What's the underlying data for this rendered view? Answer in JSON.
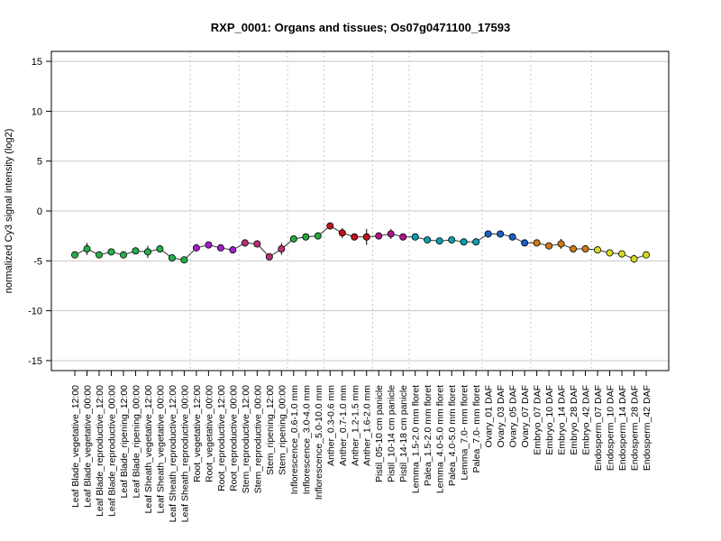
{
  "chart_data": {
    "type": "line",
    "title": "RXP_0001: Organs and tissues; Os07g0471100_17593",
    "ylabel": "normalized Cy3 signal intensity (log2)",
    "xlabel": "",
    "ylim": [
      -16,
      16
    ],
    "yticks": [
      -15,
      -10,
      -5,
      0,
      5,
      10,
      15
    ],
    "grid": {
      "horizontal": true,
      "vertical": "dotted at group boundaries"
    },
    "categories": [
      "Leaf Blade_vegetative_12:00",
      "Leaf Blade_vegetative_00:00",
      "Leaf Blade_reproductive_12:00",
      "Leaf Blade_reproductive_00:00",
      "Leaf Blade_ripening_12:00",
      "Leaf Blade_ripening_00:00",
      "Leaf Sheath_vegetative_12:00",
      "Leaf Sheath_vegetative_00:00",
      "Leaf Sheath_reproductive_12:00",
      "Leaf Sheath_reproductive_00:00",
      "Root_vegetative_12:00",
      "Root_vegetative_00:00",
      "Root_reproductive_12:00",
      "Root_reproductive_00:00",
      "Stem_reproductive_12:00",
      "Stem_reproductive_00:00",
      "Stem_ripening_12:00",
      "Stem_ripening_00:00",
      "Inflorescence_0.6-1.0 mm",
      "Inflorescence_3.0-4.0 mm",
      "Inflorescence_5.0-10.0 mm",
      "Anther_0.3-0.6 mm",
      "Anther_0.7-1.0 mm",
      "Anther_1.2-1.5 mm",
      "Anther_1.6-2.0 mm",
      "Pistil_05-10 cm panicle",
      "Pistil_10-14 cm panicle",
      "Pistil_14-18 cm panicle",
      "Lemma_1.5-2.0 mm floret",
      "Palea_1.5-2.0 mm floret",
      "Lemma_4.0-5.0 mm floret",
      "Palea_4.0-5.0 mm floret",
      "Lemma_7.0- mm floret",
      "Palea_7.0- mm floret",
      "Ovary_01 DAF",
      "Ovary_03 DAF",
      "Ovary_05 DAF",
      "Ovary_07 DAF",
      "Embryo_07 DAF",
      "Embryo_10 DAF",
      "Embryo_14 DAF",
      "Embryo_28 DAF",
      "Embryo_42 DAF",
      "Endosperm_07 DAF",
      "Endosperm_10 DAF",
      "Endosperm_14 DAF",
      "Endosperm_28 DAF",
      "Endosperm_42 DAF"
    ],
    "series": [
      {
        "values": [
          -4.4,
          -3.8,
          -4.4,
          -4.1,
          -4.4,
          -4.0,
          -4.1,
          -3.8,
          -4.7,
          -4.9,
          -3.7,
          -3.4,
          -3.7,
          -3.9,
          -3.2,
          -3.3,
          -4.6,
          -3.8,
          -2.8,
          -2.6,
          -2.5,
          -1.5,
          -2.2,
          -2.6,
          -2.6,
          -2.5,
          -2.3,
          -2.6,
          -2.6,
          -2.9,
          -3.0,
          -2.9,
          -3.1,
          -3.1,
          -2.3,
          -2.3,
          -2.6,
          -3.2,
          -3.2,
          -3.5,
          -3.3,
          -3.8,
          -3.8,
          -3.9,
          -4.2,
          -4.3,
          -4.8,
          -4.4
        ],
        "errors": [
          0.1,
          0.6,
          0.2,
          0.1,
          0.2,
          0.2,
          0.6,
          0.3,
          0.3,
          0.3,
          0.2,
          0.2,
          0.2,
          0.2,
          0.2,
          0.2,
          0.2,
          0.6,
          0.2,
          0.2,
          0.2,
          0.2,
          0.5,
          0.2,
          0.8,
          0.2,
          0.5,
          0.2,
          0.3,
          0.2,
          0.2,
          0.2,
          0.3,
          0.2,
          0.2,
          0.2,
          0.2,
          0.2,
          0.3,
          0.2,
          0.5,
          0.2,
          0.2,
          0.3,
          0.2,
          0.2,
          0.4,
          0.2
        ],
        "colors": [
          "#24b04a",
          "#24b04a",
          "#24b04a",
          "#24b04a",
          "#24b04a",
          "#24b04a",
          "#24b04a",
          "#24b04a",
          "#24b04a",
          "#24b04a",
          "#a020c8",
          "#a020c8",
          "#a020c8",
          "#a020c8",
          "#b8307a",
          "#b8307a",
          "#b8307a",
          "#b8307a",
          "#23a842",
          "#23a842",
          "#23a842",
          "#c0141e",
          "#c0141e",
          "#c0141e",
          "#c0141e",
          "#b0148c",
          "#b0148c",
          "#b0148c",
          "#0aa0b0",
          "#0aa0b0",
          "#0aa0b0",
          "#0aa0b0",
          "#0aa0b0",
          "#0aa0b0",
          "#1860c8",
          "#1860c8",
          "#1860c8",
          "#1860c8",
          "#d07818",
          "#d07818",
          "#d07818",
          "#d07818",
          "#d07818",
          "#d8d820",
          "#d8d820",
          "#d8d820",
          "#d8d820",
          "#d8d820"
        ]
      }
    ]
  }
}
